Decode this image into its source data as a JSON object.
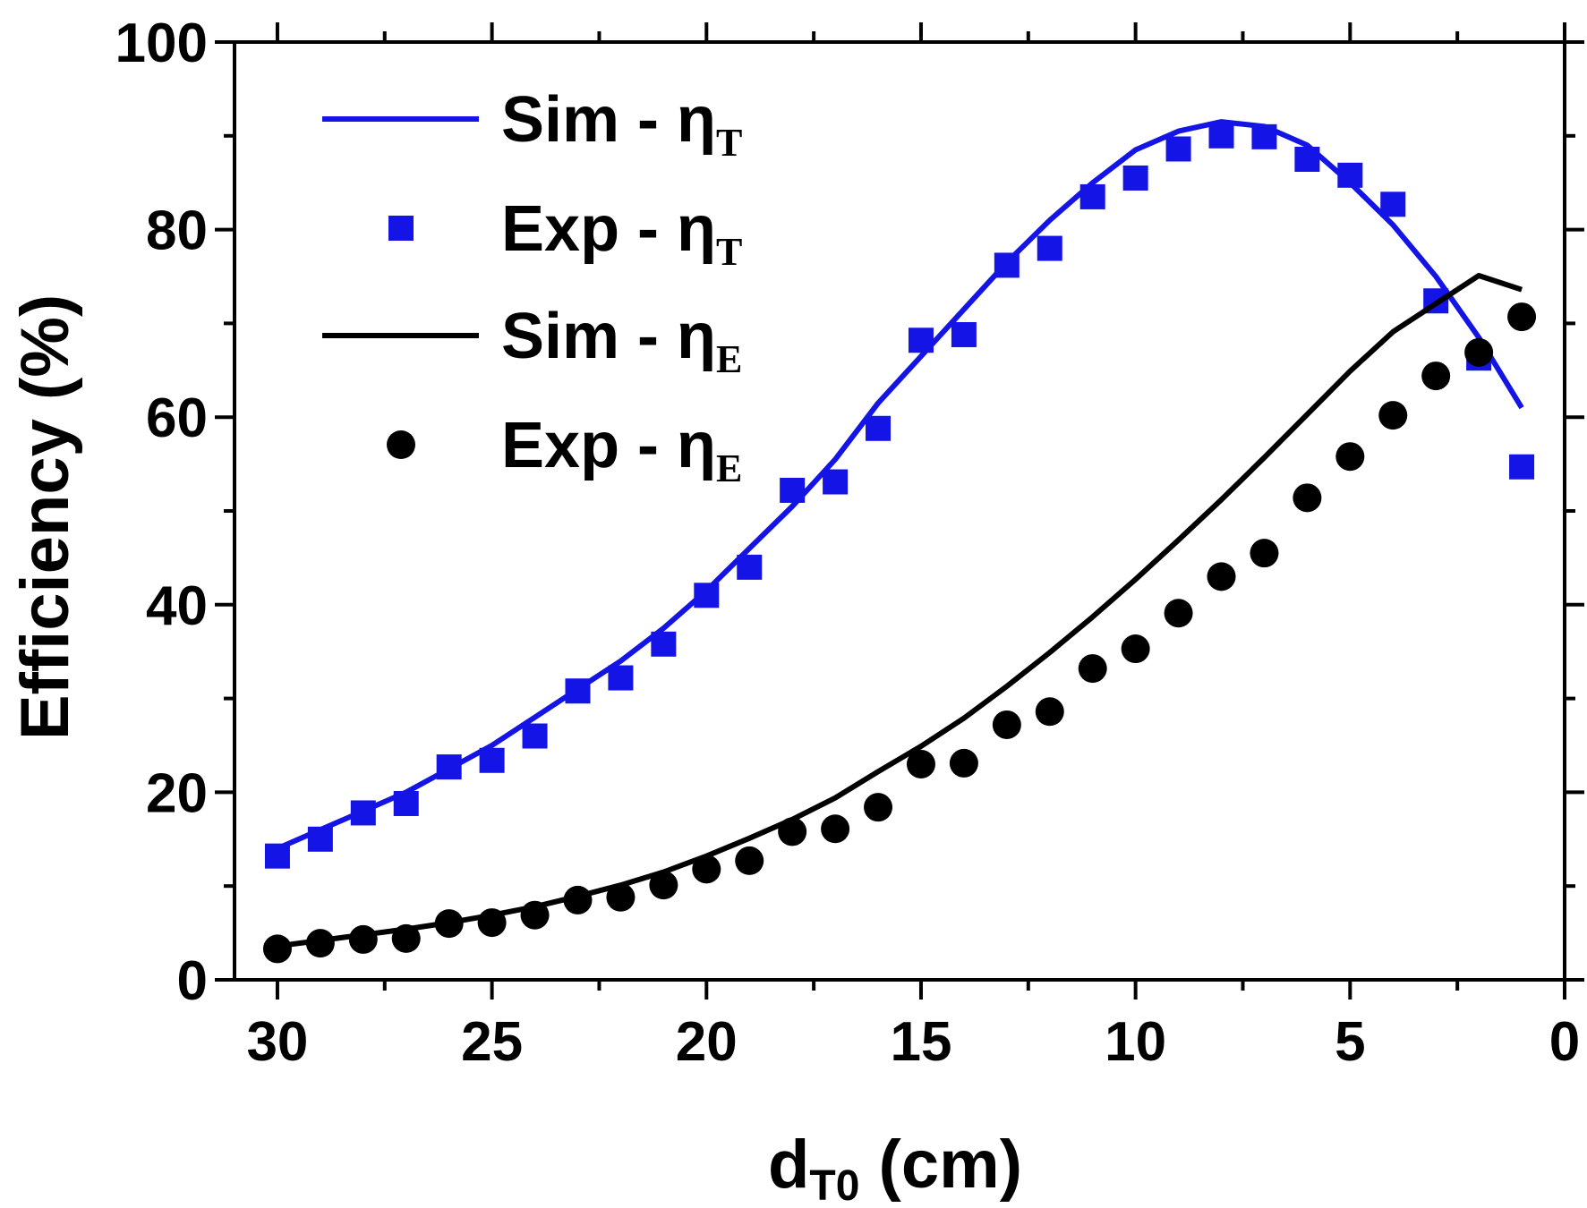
{
  "chart_data": {
    "type": "line",
    "title": "",
    "xlabel": "d",
    "xlabel_sub": "T0",
    "xlabel_unit": " (cm)",
    "ylabel": "Efficiency (%)",
    "xlim": [
      31,
      0
    ],
    "ylim": [
      0,
      100
    ],
    "x_ticks": [
      30,
      25,
      20,
      15,
      10,
      5,
      0
    ],
    "y_ticks": [
      0,
      20,
      40,
      60,
      80,
      100
    ],
    "x_tick_labels": [
      "30",
      "25",
      "20",
      "15",
      "10",
      "5",
      "0"
    ],
    "y_tick_labels": [
      "0",
      "20",
      "40",
      "60",
      "80",
      "100"
    ],
    "legend_position": "top-left",
    "colors": {
      "blue": "#1414e6",
      "black": "#000000"
    },
    "series": [
      {
        "name": "Sim - ηT",
        "name_main": "Sim - η",
        "name_sub": "T",
        "kind": "line",
        "color": "#1414e6",
        "x": [
          30,
          29,
          28,
          27,
          26,
          25,
          24,
          23,
          22,
          21,
          20,
          19,
          18,
          17,
          16,
          15,
          14,
          13,
          12,
          11,
          10,
          9,
          8,
          7,
          6,
          5,
          4,
          3,
          2,
          1
        ],
        "y": [
          14,
          16,
          18,
          20,
          22.5,
          25,
          28,
          31,
          34,
          37.5,
          41.5,
          46,
          50.5,
          55.5,
          61.5,
          66.5,
          71.5,
          76.5,
          81,
          85,
          88.5,
          90.5,
          91.5,
          91,
          89,
          85,
          80.5,
          75,
          68.5,
          61
        ]
      },
      {
        "name": "Exp - ηT",
        "name_main": "Exp - η",
        "name_sub": "T",
        "kind": "square",
        "color": "#1414e6",
        "x": [
          30,
          29,
          28,
          27,
          26,
          25,
          24,
          23,
          22,
          21,
          20,
          19,
          18,
          17,
          16,
          15,
          14,
          13,
          12,
          11,
          10,
          9,
          8,
          7,
          6,
          5,
          4,
          3,
          2,
          1
        ],
        "y": [
          13.2,
          15,
          17.8,
          18.8,
          22.7,
          23.4,
          26,
          30.8,
          32.2,
          35.8,
          41,
          44,
          52.2,
          53.1,
          58.8,
          68.2,
          68.8,
          76.2,
          78,
          83.5,
          85.5,
          88.6,
          90,
          89.9,
          87.5,
          85.8,
          82.7,
          72.4,
          66.3,
          54.7
        ]
      },
      {
        "name": "Sim - ηE",
        "name_main": "Sim - η",
        "name_sub": "E",
        "kind": "line",
        "color": "#000000",
        "x": [
          30,
          29,
          28,
          27,
          26,
          25,
          24,
          23,
          22,
          21,
          20,
          19,
          18,
          17,
          16,
          15,
          14,
          13,
          12,
          11,
          10,
          9,
          8,
          7,
          6,
          5,
          4,
          3,
          2,
          1
        ],
        "y": [
          3.6,
          4.2,
          4.8,
          5.4,
          6.1,
          6.9,
          7.8,
          8.9,
          10.1,
          11.5,
          13.2,
          15.1,
          17.1,
          19.4,
          22.2,
          24.9,
          27.9,
          31.3,
          34.9,
          38.7,
          42.7,
          46.9,
          51.2,
          55.7,
          60.3,
          64.9,
          69.1,
          72.1,
          75.1,
          73.6
        ]
      },
      {
        "name": "Exp - ηE",
        "name_main": "Exp - η",
        "name_sub": "E",
        "kind": "circle",
        "color": "#000000",
        "x": [
          30,
          29,
          28,
          27,
          26,
          25,
          24,
          23,
          22,
          21,
          20,
          19,
          18,
          17,
          16,
          15,
          14,
          13,
          12,
          11,
          10,
          9,
          8,
          7,
          6,
          5,
          4,
          3,
          2,
          1
        ],
        "y": [
          3.3,
          3.9,
          4.3,
          4.4,
          6,
          6.1,
          6.9,
          8.5,
          8.8,
          10.1,
          11.8,
          12.7,
          15.8,
          16.1,
          18.4,
          23,
          23.1,
          27.2,
          28.6,
          33.2,
          35.3,
          39.1,
          43,
          45.5,
          51.4,
          55.8,
          60.2,
          64.4,
          66.9,
          70.7
        ]
      }
    ]
  }
}
